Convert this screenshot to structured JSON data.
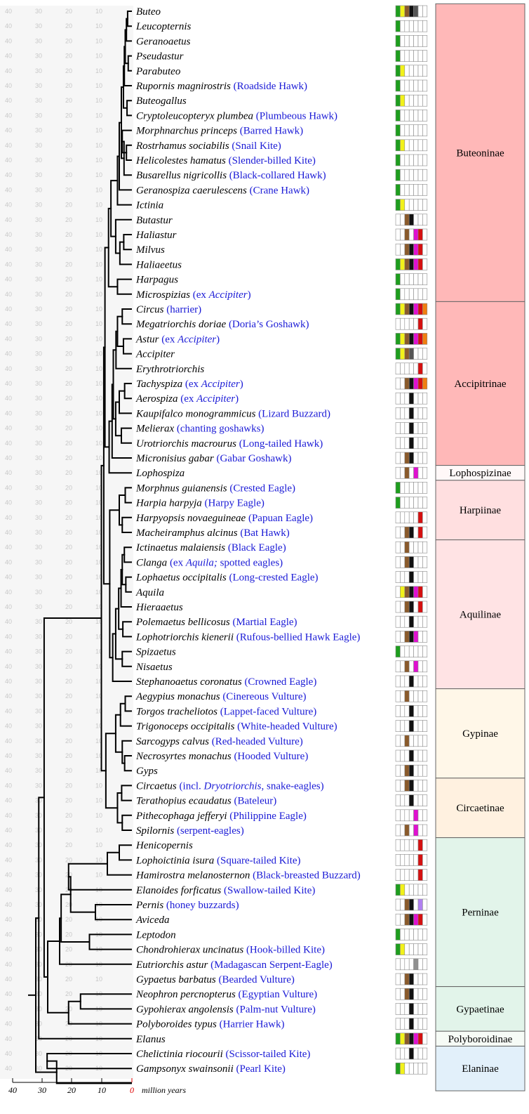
{
  "scale": {
    "ticks": [
      "40",
      "30",
      "20",
      "10",
      "0"
    ],
    "unit_label": "million years"
  },
  "grid_labels": [
    "40",
    "30",
    "20",
    "10"
  ],
  "colors": {
    "G": "#1e9e1e",
    "Y": "#f2f21a",
    "B": "#8a5a2b",
    "K": "#111111",
    "D": "#555555",
    "M": "#e010d0",
    "R": "#d41010",
    "O": "#f07e10",
    "P": "#b080f0",
    "N": "#909090"
  },
  "taxa": [
    {
      "parts": [
        {
          "t": "Buteo",
          "s": "it"
        }
      ],
      "sw": "GYBKD"
    },
    {
      "parts": [
        {
          "t": "Leucopternis",
          "s": "it"
        }
      ],
      "sw": "G"
    },
    {
      "parts": [
        {
          "t": "Geranoaetus",
          "s": "it"
        }
      ],
      "sw": "G"
    },
    {
      "parts": [
        {
          "t": "Pseudastur",
          "s": "it"
        }
      ],
      "sw": "G"
    },
    {
      "parts": [
        {
          "t": "Parabuteo",
          "s": "it"
        }
      ],
      "sw": "GY"
    },
    {
      "parts": [
        {
          "t": "Rupornis magnirostris",
          "s": "it"
        },
        {
          "t": " (Roadside Hawk)",
          "s": "cm"
        }
      ],
      "sw": "G"
    },
    {
      "parts": [
        {
          "t": "Buteogallus",
          "s": "it"
        }
      ],
      "sw": "GY"
    },
    {
      "parts": [
        {
          "t": "Cryptoleucopteryx plumbea",
          "s": "it"
        },
        {
          "t": " (Plumbeous Hawk)",
          "s": "cm"
        }
      ],
      "sw": "G"
    },
    {
      "parts": [
        {
          "t": "Morphnarchus princeps",
          "s": "it"
        },
        {
          "t": " (Barred Hawk)",
          "s": "cm"
        }
      ],
      "sw": "G"
    },
    {
      "parts": [
        {
          "t": "Rostrhamus sociabilis",
          "s": "it"
        },
        {
          "t": " (Snail Kite)",
          "s": "cm"
        }
      ],
      "sw": "GY"
    },
    {
      "parts": [
        {
          "t": "Helicolestes hamatus",
          "s": "it"
        },
        {
          "t": " (Slender-billed Kite)",
          "s": "cm"
        }
      ],
      "sw": "G"
    },
    {
      "parts": [
        {
          "t": "Busarellus nigricollis",
          "s": "it"
        },
        {
          "t": " (Black-collared Hawk)",
          "s": "cm"
        }
      ],
      "sw": "G"
    },
    {
      "parts": [
        {
          "t": "Geranospiza caerulescens",
          "s": "it"
        },
        {
          "t": " (Crane Hawk)",
          "s": "cm"
        }
      ],
      "sw": "G"
    },
    {
      "parts": [
        {
          "t": "Ictinia",
          "s": "it"
        }
      ],
      "sw": "GY"
    },
    {
      "parts": [
        {
          "t": "Butastur",
          "s": "it"
        }
      ],
      "sw": "__BK"
    },
    {
      "parts": [
        {
          "t": "Haliastur",
          "s": "it"
        }
      ],
      "sw": "__B_MR"
    },
    {
      "parts": [
        {
          "t": "Milvus",
          "s": "it"
        }
      ],
      "sw": "__BKMR"
    },
    {
      "parts": [
        {
          "t": "Haliaeetus",
          "s": "it"
        }
      ],
      "sw": "GYBKMR"
    },
    {
      "parts": [
        {
          "t": "Harpagus",
          "s": "it"
        }
      ],
      "sw": "G"
    },
    {
      "parts": [
        {
          "t": "Microspizias",
          "s": "it"
        },
        {
          "t": " (ex ",
          "s": "cm"
        },
        {
          "t": "Accipiter",
          "s": "cmi"
        },
        {
          "t": ")",
          "s": "cm"
        }
      ],
      "sw": "G"
    },
    {
      "parts": [
        {
          "t": "Circus",
          "s": "it"
        },
        {
          "t": " (harrier)",
          "s": "cm"
        }
      ],
      "sw": "GYBKMRO"
    },
    {
      "parts": [
        {
          "t": "Megatriorchis doriae",
          "s": "it"
        },
        {
          "t": " (Doria’s Goshawk)",
          "s": "cm"
        }
      ],
      "sw": "_____R"
    },
    {
      "parts": [
        {
          "t": "Astur",
          "s": "it"
        },
        {
          "t": " (ex ",
          "s": "cm"
        },
        {
          "t": "Accipiter",
          "s": "cmi"
        },
        {
          "t": ")",
          "s": "cm"
        }
      ],
      "sw": "GYBKMRO"
    },
    {
      "parts": [
        {
          "t": "Accipiter",
          "s": "it"
        }
      ],
      "sw": "GYBD"
    },
    {
      "parts": [
        {
          "t": "Erythrotriorchis",
          "s": "it"
        }
      ],
      "sw": "_____R"
    },
    {
      "parts": [
        {
          "t": "Tachyspiza",
          "s": "it"
        },
        {
          "t": " (ex ",
          "s": "cm"
        },
        {
          "t": "Accipiter",
          "s": "cmi"
        },
        {
          "t": ")",
          "s": "cm"
        }
      ],
      "sw": "__BKMRO"
    },
    {
      "parts": [
        {
          "t": "Aerospiza",
          "s": "it"
        },
        {
          "t": " (ex ",
          "s": "cm"
        },
        {
          "t": "Accipiter",
          "s": "cmi"
        },
        {
          "t": ")",
          "s": "cm"
        }
      ],
      "sw": "___K"
    },
    {
      "parts": [
        {
          "t": "Kaupifalco monogrammicus",
          "s": "it"
        },
        {
          "t": " (Lizard Buzzard)",
          "s": "cm"
        }
      ],
      "sw": "___K"
    },
    {
      "parts": [
        {
          "t": "Melierax",
          "s": "it"
        },
        {
          "t": " (chanting goshawks)",
          "s": "cm"
        }
      ],
      "sw": "___K"
    },
    {
      "parts": [
        {
          "t": "Urotriorchis macrourus",
          "s": "it"
        },
        {
          "t": " (Long-tailed Hawk)",
          "s": "cm"
        }
      ],
      "sw": "___K"
    },
    {
      "parts": [
        {
          "t": "Micronisius gabar",
          "s": "it"
        },
        {
          "t": " (Gabar Goshawk)",
          "s": "cm"
        }
      ],
      "sw": "__BK"
    },
    {
      "parts": [
        {
          "t": "Lophospiza",
          "s": "it"
        }
      ],
      "sw": "__B_M"
    },
    {
      "parts": [
        {
          "t": "Morphnus guianensis",
          "s": "it"
        },
        {
          "t": " (Crested Eagle)",
          "s": "cm"
        }
      ],
      "sw": "G"
    },
    {
      "parts": [
        {
          "t": "Harpia harpyja",
          "s": "it"
        },
        {
          "t": " (Harpy Eagle)",
          "s": "cm"
        }
      ],
      "sw": "G"
    },
    {
      "parts": [
        {
          "t": "Harpyopsis novaeguineae",
          "s": "it"
        },
        {
          "t": " (Papuan Eagle)",
          "s": "cm"
        }
      ],
      "sw": "_____R"
    },
    {
      "parts": [
        {
          "t": "Macheiramphus alcinus",
          "s": "it"
        },
        {
          "t": " (Bat Hawk)",
          "s": "cm"
        }
      ],
      "sw": "__BK_R"
    },
    {
      "parts": [
        {
          "t": "Ictinaetus malaiensis",
          "s": "it"
        },
        {
          "t": " (Black Eagle)",
          "s": "cm"
        }
      ],
      "sw": "__B"
    },
    {
      "parts": [
        {
          "t": "Clanga",
          "s": "it"
        },
        {
          "t": " (ex ",
          "s": "cm"
        },
        {
          "t": "Aquila;",
          "s": "cmi"
        },
        {
          "t": " spotted eagles)",
          "s": "cm"
        }
      ],
      "sw": "__BK"
    },
    {
      "parts": [
        {
          "t": "Lophaetus occipitalis",
          "s": "it"
        },
        {
          "t": " (Long-crested Eagle)",
          "s": "cm"
        }
      ],
      "sw": "___K"
    },
    {
      "parts": [
        {
          "t": "Aquila",
          "s": "it"
        }
      ],
      "sw": "_YBKMR"
    },
    {
      "parts": [
        {
          "t": "Hieraaetus",
          "s": "it"
        }
      ],
      "sw": "__BK_R"
    },
    {
      "parts": [
        {
          "t": "Polemaetus bellicosus",
          "s": "it"
        },
        {
          "t": " (Martial Eagle)",
          "s": "cm"
        }
      ],
      "sw": "___K"
    },
    {
      "parts": [
        {
          "t": "Lophotriorchis kienerii",
          "s": "it"
        },
        {
          "t": " (Rufous-bellied Hawk Eagle)",
          "s": "cm"
        }
      ],
      "sw": "__BKM"
    },
    {
      "parts": [
        {
          "t": "Spizaetus",
          "s": "it"
        }
      ],
      "sw": "G"
    },
    {
      "parts": [
        {
          "t": "Nisaetus",
          "s": "it"
        }
      ],
      "sw": "__B_M"
    },
    {
      "parts": [
        {
          "t": "Stephanoaetus coronatus",
          "s": "it"
        },
        {
          "t": " (Crowned Eagle)",
          "s": "cm"
        }
      ],
      "sw": "___K"
    },
    {
      "parts": [
        {
          "t": "Aegypius monachus",
          "s": "it"
        },
        {
          "t": " (Cinereous Vulture)",
          "s": "cm"
        }
      ],
      "sw": "__B"
    },
    {
      "parts": [
        {
          "t": "Torgos tracheliotos",
          "s": "it"
        },
        {
          "t": " (Lappet-faced Vulture)",
          "s": "cm"
        }
      ],
      "sw": "___K"
    },
    {
      "parts": [
        {
          "t": "Trigonoceps occipitalis",
          "s": "it"
        },
        {
          "t": " (White-headed Vulture)",
          "s": "cm"
        }
      ],
      "sw": "___K"
    },
    {
      "parts": [
        {
          "t": "Sarcogyps calvus",
          "s": "it"
        },
        {
          "t": " (Red-headed Vulture)",
          "s": "cm"
        }
      ],
      "sw": "__B"
    },
    {
      "parts": [
        {
          "t": "Necrosyrtes monachus",
          "s": "it"
        },
        {
          "t": " (Hooded Vulture)",
          "s": "cm"
        }
      ],
      "sw": "___K"
    },
    {
      "parts": [
        {
          "t": "Gyps",
          "s": "it"
        }
      ],
      "sw": "__BK"
    },
    {
      "parts": [
        {
          "t": "Circaetus",
          "s": "it"
        },
        {
          "t": " (incl. ",
          "s": "cm"
        },
        {
          "t": "Dryotriorchis",
          "s": "cmi"
        },
        {
          "t": ", snake-eagles)",
          "s": "cm"
        }
      ],
      "sw": "__BK"
    },
    {
      "parts": [
        {
          "t": "Terathopius ecaudatus",
          "s": "it"
        },
        {
          "t": " (Bateleur)",
          "s": "cm"
        }
      ],
      "sw": "___K"
    },
    {
      "parts": [
        {
          "t": "Pithecophaga jefferyi",
          "s": "it"
        },
        {
          "t": " (Philippine Eagle)",
          "s": "cm"
        }
      ],
      "sw": "____M"
    },
    {
      "parts": [
        {
          "t": "Spilornis",
          "s": "it"
        },
        {
          "t": " (serpent-eagles)",
          "s": "cm"
        }
      ],
      "sw": "__B_M"
    },
    {
      "parts": [
        {
          "t": "Henicopernis",
          "s": "it"
        }
      ],
      "sw": "_____R"
    },
    {
      "parts": [
        {
          "t": "Lophoictinia isura",
          "s": "it"
        },
        {
          "t": " (Square-tailed Kite)",
          "s": "cm"
        }
      ],
      "sw": "_____R"
    },
    {
      "parts": [
        {
          "t": "Hamirostra melanosternon",
          "s": "it"
        },
        {
          "t": " (Black-breasted Buzzard)",
          "s": "cm"
        }
      ],
      "sw": "_____R"
    },
    {
      "parts": [
        {
          "t": "Elanoides forficatus",
          "s": "it"
        },
        {
          "t": " (Swallow-tailed Kite)",
          "s": "cm"
        }
      ],
      "sw": "GY"
    },
    {
      "parts": [
        {
          "t": "Pernis",
          "s": "it"
        },
        {
          "t": " (honey buzzards)",
          "s": "cm"
        }
      ],
      "sw": "__BK_P"
    },
    {
      "parts": [
        {
          "t": "Aviceda",
          "s": "it"
        }
      ],
      "sw": "__BKMR"
    },
    {
      "parts": [
        {
          "t": "Leptodon",
          "s": "it"
        }
      ],
      "sw": "G"
    },
    {
      "parts": [
        {
          "t": "Chondrohierax uncinatus",
          "s": "it"
        },
        {
          "t": " (Hook-billed Kite)",
          "s": "cm"
        }
      ],
      "sw": "GY"
    },
    {
      "parts": [
        {
          "t": "Eutriorchis astur",
          "s": "it"
        },
        {
          "t": " (Madagascan Serpent-Eagle)",
          "s": "cm"
        }
      ],
      "sw": "____N"
    },
    {
      "parts": [
        {
          "t": "Gypaetus barbatus",
          "s": "it"
        },
        {
          "t": " (Bearded Vulture)",
          "s": "cm"
        }
      ],
      "sw": "__BK"
    },
    {
      "parts": [
        {
          "t": "Neophron percnopterus",
          "s": "it"
        },
        {
          "t": " (Egyptian Vulture)",
          "s": "cm"
        }
      ],
      "sw": "__BK"
    },
    {
      "parts": [
        {
          "t": "Gypohierax angolensis",
          "s": "it"
        },
        {
          "t": " (Palm-nut Vulture)",
          "s": "cm"
        }
      ],
      "sw": "___K"
    },
    {
      "parts": [
        {
          "t": "Polyboroides typus",
          "s": "it"
        },
        {
          "t": " (Harrier Hawk)",
          "s": "cm"
        }
      ],
      "sw": "___K"
    },
    {
      "parts": [
        {
          "t": "Elanus",
          "s": "it"
        }
      ],
      "sw": "GYBKMR"
    },
    {
      "parts": [
        {
          "t": "Chelictinia riocourii",
          "s": "it"
        },
        {
          "t": " (Scissor-tailed Kite)",
          "s": "cm"
        }
      ],
      "sw": "___K"
    },
    {
      "parts": [
        {
          "t": "Gampsonyx swainsonii",
          "s": "it"
        },
        {
          "t": " (Pearl Kite)",
          "s": "cm"
        }
      ],
      "sw": "GY"
    }
  ],
  "subfamilies": [
    {
      "name": "Buteoninae",
      "from": 0,
      "to": 19,
      "color": "#ffb8b8"
    },
    {
      "name": "Accipitrinae",
      "from": 20,
      "to": 30,
      "color": "#ffb8b8"
    },
    {
      "name": "Lophospizinae",
      "from": 31,
      "to": 31,
      "color": "#fff8f8"
    },
    {
      "name": "Harpiinae",
      "from": 32,
      "to": 35,
      "color": "#ffdfe0"
    },
    {
      "name": "Aquilinae",
      "from": 36,
      "to": 45,
      "color": "#ffe3e4"
    },
    {
      "name": "Gypinae",
      "from": 46,
      "to": 51,
      "color": "#fff7e8"
    },
    {
      "name": "Circaetinae",
      "from": 52,
      "to": 55,
      "color": "#fff1e0"
    },
    {
      "name": "Perninae",
      "from": 56,
      "to": 65,
      "color": "#e2f4ea"
    },
    {
      "name": "Gypaetinae",
      "from": 66,
      "to": 68,
      "color": "#e2f4ea"
    },
    {
      "name": "Polyboroidinae",
      "from": 69,
      "to": 69,
      "color": "#f6fbf6"
    },
    {
      "name": "Elaninae",
      "from": 70,
      "to": 72,
      "color": "#e2f0fa"
    }
  ]
}
